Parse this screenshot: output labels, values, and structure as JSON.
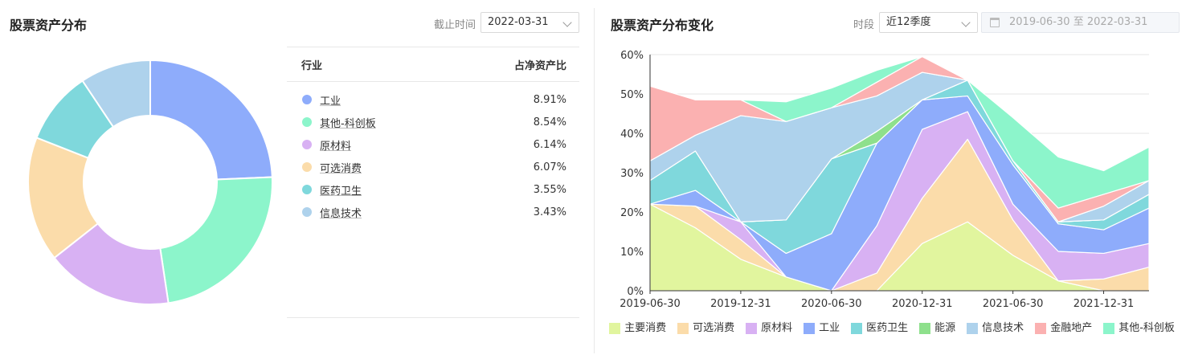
{
  "left_panel": {
    "title": "股票资产分布",
    "date_label": "截止时间",
    "date_value": "2022-03-31",
    "table_headers": {
      "industry": "行业",
      "ratio": "占净资产比"
    },
    "rows": [
      {
        "name": "工业",
        "value": "8.91%",
        "color": "#8eacfb"
      },
      {
        "name": "其他-科创板",
        "value": "8.54%",
        "color": "#8cf5cb"
      },
      {
        "name": "原材料",
        "value": "6.14%",
        "color": "#d8b1f3"
      },
      {
        "name": "可选消费",
        "value": "6.07%",
        "color": "#fbdcaa"
      },
      {
        "name": "医药卫生",
        "value": "3.55%",
        "color": "#7fd8dc"
      },
      {
        "name": "信息技术",
        "value": "3.43%",
        "color": "#aed2ec"
      }
    ]
  },
  "right_panel": {
    "title": "股票资产分布变化",
    "period_label": "时段",
    "period_value": "近12季度",
    "date_from": "2019-06-30",
    "date_sep": "至",
    "date_to": "2022-03-31"
  },
  "chart_data": [
    {
      "type": "pie",
      "categories": [
        "工业",
        "其他-科创板",
        "原材料",
        "可选消费",
        "医药卫生",
        "信息技术"
      ],
      "values": [
        8.91,
        8.54,
        6.14,
        6.07,
        3.55,
        3.43
      ],
      "colors": [
        "#8eacfb",
        "#8cf5cb",
        "#d8b1f3",
        "#fbdcaa",
        "#7fd8dc",
        "#aed2ec"
      ],
      "donut": true
    },
    {
      "type": "area",
      "stacked": true,
      "x": [
        "2019-06-30",
        "2019-09-30",
        "2019-12-31",
        "2020-03-31",
        "2020-06-30",
        "2020-09-30",
        "2020-12-31",
        "2021-03-31",
        "2021-06-30",
        "2021-09-30",
        "2021-12-31",
        "2022-03-31"
      ],
      "xticks": [
        "2019-06-30",
        "2019-12-31",
        "2020-06-30",
        "2020-12-31",
        "2021-06-30",
        "2021-12-31"
      ],
      "yticks": [
        "0%",
        "10%",
        "20%",
        "30%",
        "40%",
        "50%",
        "60%"
      ],
      "ylim": [
        0,
        60
      ],
      "grid": true,
      "legend_position": "bottom",
      "series": [
        {
          "name": "主要消费",
          "color": "#e1f59e",
          "values": [
            22,
            16,
            8,
            3.5,
            0,
            0,
            12,
            17.5,
            9,
            2.5,
            0,
            0
          ]
        },
        {
          "name": "可选消费",
          "color": "#fbdcaa",
          "values": [
            0,
            5.5,
            5,
            0,
            0,
            4.5,
            11.5,
            21,
            9,
            0,
            3,
            6
          ]
        },
        {
          "name": "原材料",
          "color": "#d8b1f3",
          "values": [
            0,
            0,
            4.5,
            0,
            0,
            12,
            17.5,
            7,
            4,
            7.5,
            6.5,
            6
          ]
        },
        {
          "name": "工业",
          "color": "#8eacfb",
          "values": [
            0,
            4,
            0,
            6,
            14.5,
            21,
            7.5,
            4,
            10,
            7,
            6,
            9
          ]
        },
        {
          "name": "医药卫生",
          "color": "#7fd8dc",
          "values": [
            6,
            10,
            0,
            8.5,
            19,
            0,
            0,
            4,
            1,
            0.5,
            2.5,
            3.5
          ]
        },
        {
          "name": "能源",
          "color": "#8ee08c",
          "values": [
            0,
            0,
            0,
            0,
            0,
            3,
            0,
            0,
            0,
            0,
            0,
            0
          ]
        },
        {
          "name": "信息技术",
          "color": "#aed2ec",
          "values": [
            5,
            4,
            27,
            25,
            13,
            9,
            7,
            0,
            0,
            0,
            3.5,
            3.5
          ]
        },
        {
          "name": "金融地产",
          "color": "#fbb1b1",
          "values": [
            19,
            9,
            4,
            0,
            0,
            3.5,
            4,
            0,
            0,
            3.5,
            3,
            0
          ]
        },
        {
          "name": "其他-科创板",
          "color": "#8cf5cb",
          "values": [
            0,
            0,
            0,
            5,
            5,
            3,
            0,
            0,
            11,
            13,
            6,
            8.5
          ]
        }
      ]
    }
  ]
}
